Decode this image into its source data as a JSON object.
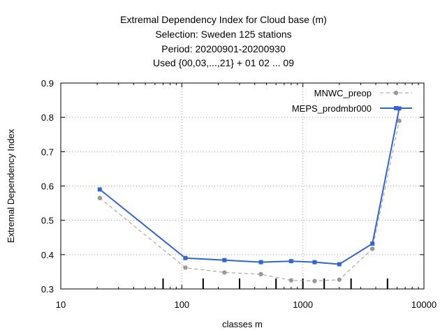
{
  "chart_data": {
    "type": "line",
    "title_lines": [
      "Extremal Dependency Index  for Cloud base (m)",
      "Selection: Sweden    125 stations",
      "Period: 20200901-20200930",
      "Used {00,03,...,21} + 01 02 ... 09"
    ],
    "xlabel": "classes m",
    "ylabel": "Extremal Dependency Index",
    "x_scale": "log",
    "xlim": [
      10,
      10000
    ],
    "ylim": [
      0.3,
      0.9
    ],
    "x_ticks": [
      10,
      100,
      1000,
      10000
    ],
    "x_tick_labels": [
      "10",
      "100",
      "1000",
      "10000"
    ],
    "y_ticks": [
      0.3,
      0.4,
      0.5,
      0.6,
      0.7,
      0.8,
      0.9
    ],
    "y_tick_labels": [
      "0.3",
      "0.4",
      "0.5",
      "0.6",
      "0.7",
      "0.8",
      "0.9"
    ],
    "grid": true,
    "legend_position": "top-right",
    "class_thresholds": [
      70,
      150,
      300,
      600,
      1000,
      1500,
      2500,
      5000
    ],
    "series": [
      {
        "name": "MNWC_preop",
        "color": "#999999",
        "style": "dashed",
        "marker": "circle",
        "x": [
          21,
          107,
          225,
          450,
          800,
          1250,
          2000,
          3750,
          6250
        ],
        "y": [
          0.565,
          0.362,
          0.348,
          0.343,
          0.325,
          0.323,
          0.327,
          0.417,
          0.79
        ]
      },
      {
        "name": "MEPS_prodmbr000",
        "color": "#3366cc",
        "style": "solid",
        "marker": "square",
        "x": [
          21,
          107,
          225,
          450,
          800,
          1250,
          2000,
          3750,
          6250
        ],
        "y": [
          0.59,
          0.39,
          0.384,
          0.378,
          0.381,
          0.378,
          0.372,
          0.432,
          0.826
        ]
      }
    ]
  }
}
